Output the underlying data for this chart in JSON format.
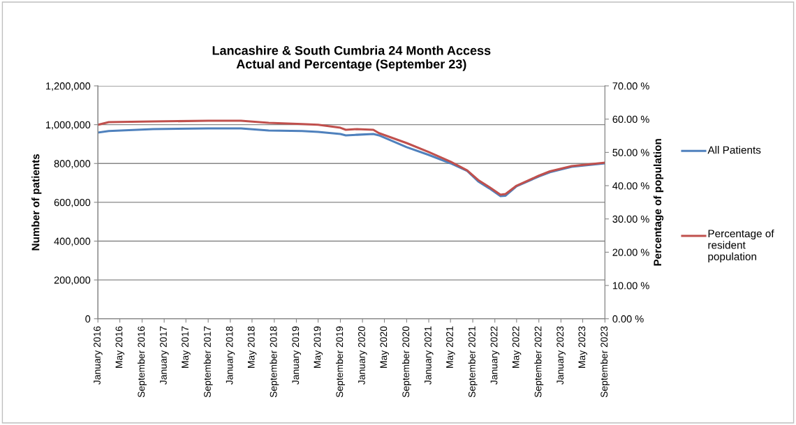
{
  "chart_data": {
    "type": "line",
    "title": "Lancashire & South Cumbria 24 Month Access\nActual and Percentage (September 23)",
    "ylabel": "Number of patients",
    "y2label": "Percentage of population",
    "x": [
      "2016-01",
      "2016-03",
      "2016-11",
      "2017-09",
      "2018-03",
      "2018-08",
      "2019-02",
      "2019-05",
      "2019-09",
      "2019-10",
      "2019-12",
      "2020-03",
      "2020-04",
      "2020-09",
      "2021-01",
      "2021-05",
      "2021-08",
      "2021-10",
      "2021-12",
      "2022-02",
      "2022-03",
      "2022-05",
      "2022-09",
      "2022-11",
      "2023-03",
      "2023-09"
    ],
    "series": [
      {
        "name": "All Patients",
        "color": "#4f81bd",
        "values": [
          959000,
          967000,
          977000,
          981000,
          981000,
          970000,
          967000,
          963000,
          952000,
          945000,
          948000,
          952000,
          945000,
          884000,
          844000,
          801000,
          762000,
          708000,
          672000,
          632000,
          634000,
          683000,
          733000,
          755000,
          783000,
          801000
        ]
      },
      {
        "name": "Percentage of resident population",
        "color": "#c0504d",
        "axis": "y2",
        "values": [
          58.3,
          59.1,
          59.3,
          59.5,
          59.5,
          58.9,
          58.5,
          58.3,
          57.4,
          56.8,
          57.0,
          56.8,
          55.8,
          52.8,
          50.1,
          47.2,
          44.6,
          41.7,
          39.6,
          37.3,
          37.5,
          40.0,
          43.0,
          44.3,
          45.9,
          46.9
        ]
      }
    ],
    "xlim": [
      "2016-01",
      "2023-09"
    ],
    "xticks": [
      {
        "value": "2016-01",
        "label": "January 2016"
      },
      {
        "value": "2016-05",
        "label": "May 2016"
      },
      {
        "value": "2016-09",
        "label": "September 2016"
      },
      {
        "value": "2017-01",
        "label": "January 2017"
      },
      {
        "value": "2017-05",
        "label": "May 2017"
      },
      {
        "value": "2017-09",
        "label": "September 2017"
      },
      {
        "value": "2018-01",
        "label": "January 2018"
      },
      {
        "value": "2018-05",
        "label": "May 2018"
      },
      {
        "value": "2018-09",
        "label": "September 2018"
      },
      {
        "value": "2019-01",
        "label": "January 2019"
      },
      {
        "value": "2019-05",
        "label": "May 2019"
      },
      {
        "value": "2019-09",
        "label": "September 2019"
      },
      {
        "value": "2020-01",
        "label": "January 2020"
      },
      {
        "value": "2020-05",
        "label": "May 2020"
      },
      {
        "value": "2020-09",
        "label": "September 2020"
      },
      {
        "value": "2021-01",
        "label": "January 2021"
      },
      {
        "value": "2021-05",
        "label": "May 2021"
      },
      {
        "value": "2021-09",
        "label": "September 2021"
      },
      {
        "value": "2022-01",
        "label": "January 2022"
      },
      {
        "value": "2022-05",
        "label": "May 2022"
      },
      {
        "value": "2022-09",
        "label": "September 2022"
      },
      {
        "value": "2023-01",
        "label": "January 2023"
      },
      {
        "value": "2023-05",
        "label": "May 2023"
      },
      {
        "value": "2023-09",
        "label": "September 2023"
      }
    ],
    "ylim": [
      0,
      1200000
    ],
    "yticks": [
      {
        "value": 0,
        "label": "0"
      },
      {
        "value": 200000,
        "label": "200,000"
      },
      {
        "value": 400000,
        "label": "400,000"
      },
      {
        "value": 600000,
        "label": "600,000"
      },
      {
        "value": 800000,
        "label": "800,000"
      },
      {
        "value": 1000000,
        "label": "1,000,000"
      },
      {
        "value": 1200000,
        "label": "1,200,000"
      }
    ],
    "y2lim": [
      0,
      70
    ],
    "y2ticks": [
      {
        "value": 0,
        "label": "0.00 %"
      },
      {
        "value": 10,
        "label": "10.00 %"
      },
      {
        "value": 20,
        "label": "20.00 %"
      },
      {
        "value": 30,
        "label": "30.00 %"
      },
      {
        "value": 40,
        "label": "40.00 %"
      },
      {
        "value": 50,
        "label": "50.00 %"
      },
      {
        "value": 60,
        "label": "60.00 %"
      },
      {
        "value": 70,
        "label": "70.00 %"
      }
    ],
    "grid": "y",
    "legend": "right",
    "marker": "none",
    "line_style": "solid"
  }
}
